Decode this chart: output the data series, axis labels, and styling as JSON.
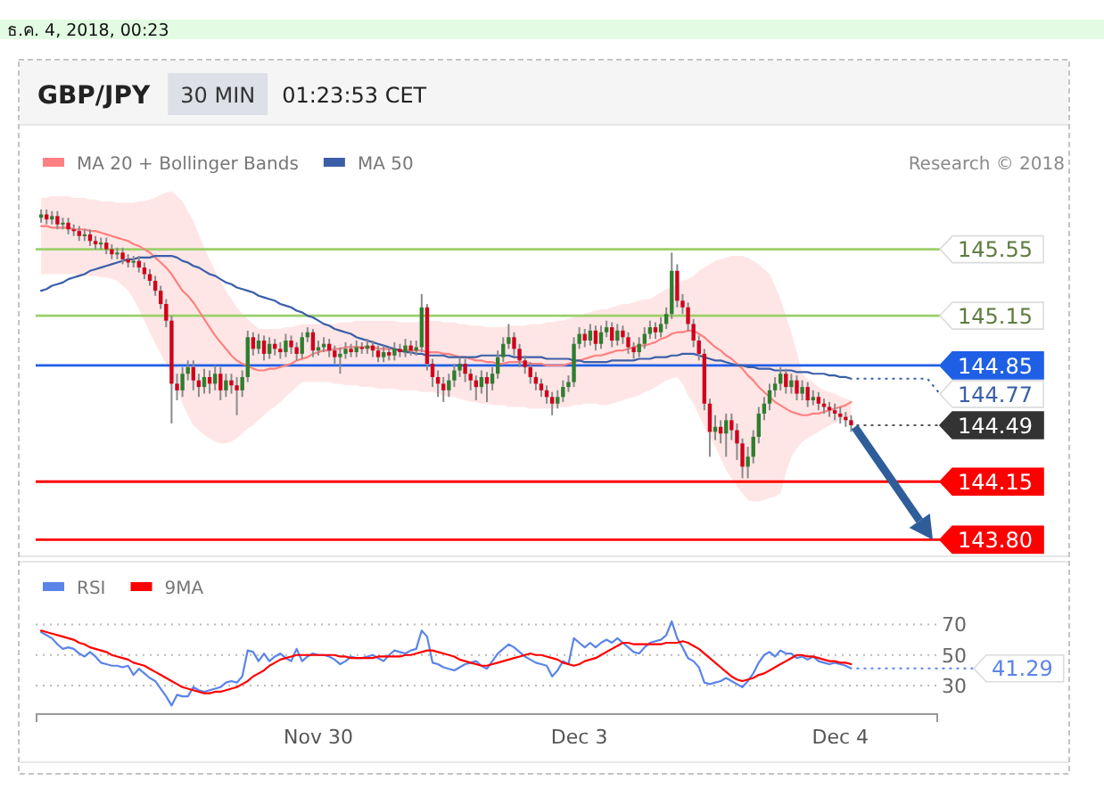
{
  "chart_data": [
    {
      "type": "candlestick",
      "title": "GBP/JPY",
      "subtitle": "30 MIN",
      "annotations": [
        "ธ.ค. 4, 2018, 00:23",
        "01:23:53 CET",
        "Research © 2018",
        "144.77",
        "144.49"
      ],
      "categories": [
        null,
        null,
        null,
        null,
        null,
        null,
        null,
        null,
        null,
        null,
        null,
        null,
        null,
        null,
        null,
        null,
        null,
        null,
        null,
        null,
        null,
        null,
        null,
        null,
        null,
        null,
        null,
        null,
        null,
        null,
        null,
        null,
        null,
        null,
        null,
        null,
        null,
        null,
        null,
        null,
        null,
        null,
        null,
        null,
        null,
        null,
        null,
        null,
        null,
        null,
        null,
        null,
        null,
        null,
        null,
        null,
        null,
        null,
        null,
        null,
        null,
        null,
        null,
        null,
        null,
        null,
        null,
        null,
        null,
        null,
        null,
        null,
        null,
        null,
        null,
        null,
        null,
        null,
        null,
        null,
        null,
        null,
        null,
        null,
        null,
        null,
        null,
        null,
        null,
        null,
        null,
        null,
        null,
        null,
        null,
        null,
        null,
        null,
        null,
        null,
        null,
        null,
        null,
        null,
        null,
        null,
        null,
        null,
        null,
        null,
        null,
        null,
        null,
        null,
        null,
        null,
        null,
        null,
        null,
        null,
        null,
        null,
        null,
        null,
        null,
        null,
        null,
        null,
        null,
        null,
        null,
        null,
        null,
        null,
        null,
        null,
        null,
        null,
        null,
        null,
        null,
        null,
        null,
        null,
        null,
        null,
        null,
        null,
        null,
        null
      ],
      "ohlc": [
        [
          145.74,
          145.79,
          145.71,
          145.76
        ],
        [
          145.76,
          145.79,
          145.7,
          145.73
        ],
        [
          145.73,
          145.78,
          145.7,
          145.75
        ],
        [
          145.75,
          145.78,
          145.67,
          145.7
        ],
        [
          145.7,
          145.74,
          145.67,
          145.71
        ],
        [
          145.71,
          145.74,
          145.64,
          145.67
        ],
        [
          145.67,
          145.7,
          145.63,
          145.66
        ],
        [
          145.66,
          145.69,
          145.6,
          145.63
        ],
        [
          145.63,
          145.67,
          145.6,
          145.64
        ],
        [
          145.64,
          145.67,
          145.57,
          145.6
        ],
        [
          145.6,
          145.63,
          145.55,
          145.58
        ],
        [
          145.58,
          145.62,
          145.55,
          145.59
        ],
        [
          145.59,
          145.62,
          145.52,
          145.55
        ],
        [
          145.55,
          145.58,
          145.49,
          145.52
        ],
        [
          145.52,
          145.56,
          145.49,
          145.53
        ],
        [
          145.53,
          145.56,
          145.46,
          145.49
        ],
        [
          145.49,
          145.52,
          145.44,
          145.47
        ],
        [
          145.47,
          145.51,
          145.44,
          145.48
        ],
        [
          145.48,
          145.51,
          145.41,
          145.44
        ],
        [
          145.44,
          145.47,
          145.37,
          145.4
        ],
        [
          145.4,
          145.43,
          145.33,
          145.36
        ],
        [
          145.36,
          145.39,
          145.27,
          145.3
        ],
        [
          145.3,
          145.33,
          145.19,
          145.22
        ],
        [
          145.22,
          145.25,
          145.08,
          145.12
        ],
        [
          145.12,
          145.15,
          144.5,
          144.74
        ],
        [
          144.74,
          144.8,
          144.64,
          144.7
        ],
        [
          144.7,
          144.84,
          144.66,
          144.8
        ],
        [
          144.8,
          144.88,
          144.76,
          144.84
        ],
        [
          144.84,
          144.88,
          144.7,
          144.76
        ],
        [
          144.76,
          144.8,
          144.66,
          144.72
        ],
        [
          144.72,
          144.83,
          144.68,
          144.78
        ],
        [
          144.78,
          144.82,
          144.68,
          144.74
        ],
        [
          144.74,
          144.85,
          144.7,
          144.8
        ],
        [
          144.8,
          144.84,
          144.64,
          144.7
        ],
        [
          144.7,
          144.8,
          144.66,
          144.76
        ],
        [
          144.76,
          144.8,
          144.68,
          144.73
        ],
        [
          144.73,
          144.78,
          144.55,
          144.7
        ],
        [
          144.7,
          144.82,
          144.66,
          144.78
        ],
        [
          144.78,
          145.06,
          144.75,
          145.02
        ],
        [
          145.02,
          145.05,
          144.91,
          144.95
        ],
        [
          144.95,
          145.04,
          144.92,
          145.0
        ],
        [
          145.0,
          145.03,
          144.88,
          144.92
        ],
        [
          144.92,
          145.02,
          144.89,
          144.98
        ],
        [
          144.98,
          145.01,
          144.91,
          144.95
        ],
        [
          144.95,
          144.99,
          144.89,
          144.93
        ],
        [
          144.93,
          145.04,
          144.9,
          145.0
        ],
        [
          145.0,
          145.03,
          144.92,
          144.96
        ],
        [
          144.96,
          144.99,
          144.88,
          144.92
        ],
        [
          144.92,
          145.05,
          144.89,
          145.02
        ],
        [
          145.02,
          145.08,
          144.99,
          145.05
        ],
        [
          145.05,
          145.07,
          144.9,
          144.94
        ],
        [
          144.94,
          145.0,
          144.91,
          144.96
        ],
        [
          144.96,
          145.02,
          144.93,
          144.98
        ],
        [
          144.98,
          145.01,
          144.9,
          144.94
        ],
        [
          144.94,
          144.97,
          144.86,
          144.9
        ],
        [
          144.9,
          144.96,
          144.8,
          144.92
        ],
        [
          144.92,
          144.99,
          144.89,
          144.95
        ],
        [
          144.95,
          144.98,
          144.9,
          144.93
        ],
        [
          144.93,
          145.0,
          144.9,
          144.96
        ],
        [
          144.96,
          144.99,
          144.92,
          144.95
        ],
        [
          144.95,
          145.01,
          144.92,
          144.97
        ],
        [
          144.97,
          145.0,
          144.9,
          144.94
        ],
        [
          144.94,
          144.97,
          144.87,
          144.9
        ],
        [
          144.9,
          144.97,
          144.87,
          144.93
        ],
        [
          144.93,
          144.96,
          144.88,
          144.91
        ],
        [
          144.91,
          144.99,
          144.88,
          144.95
        ],
        [
          144.95,
          144.98,
          144.9,
          144.93
        ],
        [
          144.93,
          145.01,
          144.9,
          144.97
        ],
        [
          144.97,
          145.0,
          144.91,
          144.94
        ],
        [
          144.94,
          145.0,
          144.91,
          144.96
        ],
        [
          144.96,
          145.28,
          144.93,
          145.2
        ],
        [
          145.2,
          145.22,
          144.82,
          144.86
        ],
        [
          144.86,
          144.89,
          144.72,
          144.78
        ],
        [
          144.78,
          144.82,
          144.66,
          144.74
        ],
        [
          144.74,
          144.78,
          144.63,
          144.7
        ],
        [
          144.7,
          144.8,
          144.66,
          144.76
        ],
        [
          144.76,
          144.86,
          144.72,
          144.82
        ],
        [
          144.82,
          144.9,
          144.78,
          144.86
        ],
        [
          144.86,
          144.89,
          144.75,
          144.8
        ],
        [
          144.8,
          144.83,
          144.7,
          144.76
        ],
        [
          144.76,
          144.79,
          144.64,
          144.72
        ],
        [
          144.72,
          144.82,
          144.68,
          144.78
        ],
        [
          144.78,
          144.81,
          144.63,
          144.74
        ],
        [
          144.74,
          144.84,
          144.7,
          144.8
        ],
        [
          144.8,
          144.94,
          144.77,
          144.9
        ],
        [
          144.9,
          145.02,
          144.87,
          144.98
        ],
        [
          144.98,
          145.1,
          144.95,
          145.02
        ],
        [
          145.02,
          145.05,
          144.91,
          144.95
        ],
        [
          144.95,
          144.98,
          144.84,
          144.88
        ],
        [
          144.88,
          144.91,
          144.8,
          144.84
        ],
        [
          144.84,
          144.87,
          144.74,
          144.78
        ],
        [
          144.78,
          144.81,
          144.7,
          144.74
        ],
        [
          144.74,
          144.77,
          144.66,
          144.7
        ],
        [
          144.7,
          144.73,
          144.62,
          144.66
        ],
        [
          144.66,
          144.69,
          144.55,
          144.62
        ],
        [
          144.62,
          144.7,
          144.59,
          144.66
        ],
        [
          144.66,
          144.76,
          144.63,
          144.72
        ],
        [
          144.72,
          144.79,
          144.69,
          144.75
        ],
        [
          144.75,
          145.02,
          144.72,
          144.98
        ],
        [
          144.98,
          145.08,
          144.95,
          145.04
        ],
        [
          145.04,
          145.07,
          144.96,
          145.0
        ],
        [
          145.0,
          145.1,
          144.97,
          145.06
        ],
        [
          145.06,
          145.09,
          144.94,
          144.98
        ],
        [
          144.98,
          145.09,
          144.95,
          145.05
        ],
        [
          145.05,
          145.12,
          145.02,
          145.08
        ],
        [
          145.08,
          145.11,
          144.96,
          145.0
        ],
        [
          145.0,
          145.1,
          144.97,
          145.06
        ],
        [
          145.06,
          145.09,
          144.98,
          145.02
        ],
        [
          145.02,
          145.05,
          144.92,
          144.96
        ],
        [
          144.96,
          144.99,
          144.89,
          144.93
        ],
        [
          144.93,
          145.02,
          144.9,
          144.98
        ],
        [
          144.98,
          145.08,
          144.95,
          145.04
        ],
        [
          145.04,
          145.12,
          145.01,
          145.08
        ],
        [
          145.08,
          145.11,
          145.01,
          145.05
        ],
        [
          145.05,
          145.14,
          145.02,
          145.1
        ],
        [
          145.1,
          145.2,
          145.07,
          145.16
        ],
        [
          145.16,
          145.53,
          145.13,
          145.42
        ],
        [
          145.42,
          145.46,
          145.2,
          145.24
        ],
        [
          145.24,
          145.28,
          145.16,
          145.2
        ],
        [
          145.2,
          145.23,
          145.06,
          145.1
        ],
        [
          145.1,
          145.13,
          144.96,
          145.0
        ],
        [
          145.0,
          145.03,
          144.88,
          144.92
        ],
        [
          144.92,
          144.95,
          144.58,
          144.62
        ],
        [
          144.62,
          144.65,
          144.3,
          144.45
        ],
        [
          144.45,
          144.55,
          144.4,
          144.48
        ],
        [
          144.48,
          144.52,
          144.38,
          144.44
        ],
        [
          144.44,
          144.56,
          144.3,
          144.52
        ],
        [
          144.52,
          144.56,
          144.4,
          144.46
        ],
        [
          144.46,
          144.5,
          144.28,
          144.38
        ],
        [
          144.38,
          144.41,
          144.17,
          144.24
        ],
        [
          144.24,
          144.36,
          144.17,
          144.3
        ],
        [
          144.3,
          144.46,
          144.26,
          144.42
        ],
        [
          144.42,
          144.6,
          144.38,
          144.56
        ],
        [
          144.56,
          144.66,
          144.52,
          144.62
        ],
        [
          144.62,
          144.74,
          144.58,
          144.7
        ],
        [
          144.7,
          144.78,
          144.66,
          144.74
        ],
        [
          144.74,
          144.84,
          144.7,
          144.8
        ],
        [
          144.8,
          144.83,
          144.68,
          144.72
        ],
        [
          144.72,
          144.8,
          144.68,
          144.76
        ],
        [
          144.76,
          144.79,
          144.64,
          144.68
        ],
        [
          144.68,
          144.76,
          144.64,
          144.72
        ],
        [
          144.72,
          144.75,
          144.6,
          144.64
        ],
        [
          144.64,
          144.7,
          144.61,
          144.66
        ],
        [
          144.66,
          144.69,
          144.58,
          144.62
        ],
        [
          144.62,
          144.65,
          144.56,
          144.6
        ],
        [
          144.6,
          144.63,
          144.54,
          144.58
        ],
        [
          144.58,
          144.62,
          144.52,
          144.56
        ],
        [
          144.56,
          144.6,
          144.5,
          144.54
        ],
        [
          144.54,
          144.57,
          144.48,
          144.52
        ],
        [
          144.52,
          144.55,
          144.45,
          144.49
        ]
      ],
      "series": [
        {
          "name": "MA 20 + Bollinger Bands",
          "type": "line",
          "color": "#ff8080",
          "values": [
            145.69,
            145.69,
            145.68,
            145.68,
            145.68,
            145.68,
            145.67,
            145.67,
            145.67,
            145.66,
            145.66,
            145.65,
            145.64,
            145.63,
            145.62,
            145.61,
            145.6,
            145.58,
            145.57,
            145.55,
            145.53,
            145.5,
            145.47,
            145.44,
            145.4,
            145.35,
            145.3,
            145.27,
            145.23,
            145.18,
            145.13,
            145.08,
            145.03,
            144.99,
            144.95,
            144.91,
            144.88,
            144.86,
            144.85,
            144.83,
            144.82,
            144.82,
            144.83,
            144.83,
            144.84,
            144.85,
            144.86,
            144.88,
            144.89,
            144.9,
            144.92,
            144.93,
            144.94,
            144.94,
            144.95,
            144.95,
            144.96,
            144.96,
            144.96,
            144.96,
            144.96,
            144.96,
            144.95,
            144.95,
            144.95,
            144.95,
            144.94,
            144.94,
            144.94,
            144.94,
            144.94,
            144.93,
            144.93,
            144.93,
            144.92,
            144.92,
            144.91,
            144.9,
            144.9,
            144.89,
            144.88,
            144.88,
            144.87,
            144.87,
            144.86,
            144.86,
            144.87,
            144.87,
            144.87,
            144.87,
            144.86,
            144.86,
            144.86,
            144.85,
            144.85,
            144.85,
            144.85,
            144.86,
            144.87,
            144.88,
            144.89,
            144.9,
            144.91,
            144.91,
            144.92,
            144.93,
            144.94,
            144.94,
            144.95,
            144.96,
            144.97,
            144.97,
            144.98,
            144.99,
            145.01,
            145.02,
            145.04,
            145.05,
            145.05,
            145.06,
            145.06,
            145.04,
            145.02,
            144.99,
            144.96,
            144.94,
            144.91,
            144.89,
            144.86,
            144.83,
            144.79,
            144.76,
            144.72,
            144.69,
            144.66,
            144.63,
            144.61,
            144.59,
            144.57,
            144.56,
            144.55,
            144.55,
            144.56,
            144.56,
            144.57,
            144.58,
            144.59,
            144.6,
            144.61,
            144.63
          ],
          "upper": [
            145.86,
            145.86,
            145.87,
            145.87,
            145.87,
            145.87,
            145.86,
            145.86,
            145.86,
            145.85,
            145.85,
            145.84,
            145.84,
            145.84,
            145.83,
            145.83,
            145.83,
            145.83,
            145.84,
            145.84,
            145.85,
            145.86,
            145.88,
            145.89,
            145.9,
            145.87,
            145.84,
            145.78,
            145.72,
            145.64,
            145.56,
            145.49,
            145.42,
            145.36,
            145.3,
            145.25,
            145.2,
            145.16,
            145.13,
            145.1,
            145.07,
            145.07,
            145.07,
            145.07,
            145.07,
            145.08,
            145.08,
            145.09,
            145.1,
            145.1,
            145.1,
            145.1,
            145.1,
            145.1,
            145.1,
            145.11,
            145.11,
            145.11,
            145.12,
            145.12,
            145.12,
            145.12,
            145.12,
            145.12,
            145.12,
            145.12,
            145.11,
            145.11,
            145.11,
            145.11,
            145.12,
            145.12,
            145.12,
            145.12,
            145.11,
            145.11,
            145.11,
            145.1,
            145.1,
            145.09,
            145.09,
            145.09,
            145.08,
            145.08,
            145.08,
            145.08,
            145.09,
            145.09,
            145.09,
            145.09,
            145.1,
            145.1,
            145.1,
            145.11,
            145.11,
            145.12,
            145.12,
            145.13,
            145.14,
            145.15,
            145.16,
            145.17,
            145.18,
            145.19,
            145.19,
            145.2,
            145.21,
            145.22,
            145.22,
            145.23,
            145.24,
            145.25,
            145.25,
            145.27,
            145.29,
            145.31,
            145.32,
            145.34,
            145.36,
            145.37,
            145.39,
            145.42,
            145.44,
            145.46,
            145.48,
            145.49,
            145.5,
            145.51,
            145.51,
            145.51,
            145.5,
            145.48,
            145.46,
            145.43,
            145.4,
            145.33,
            145.25,
            145.15,
            145.05,
            144.93,
            144.8,
            144.77,
            144.75,
            144.72,
            144.7,
            144.69,
            144.68,
            144.66,
            144.65,
            144.64
          ],
          "lower": [
            145.4,
            145.4,
            145.4,
            145.4,
            145.4,
            145.4,
            145.4,
            145.39,
            145.39,
            145.39,
            145.39,
            145.38,
            145.38,
            145.37,
            145.36,
            145.33,
            145.3,
            145.25,
            145.19,
            145.12,
            145.05,
            144.98,
            144.92,
            144.86,
            144.8,
            144.71,
            144.62,
            144.55,
            144.49,
            144.46,
            144.43,
            144.41,
            144.39,
            144.38,
            144.38,
            144.39,
            144.41,
            144.44,
            144.47,
            144.49,
            144.52,
            144.55,
            144.58,
            144.6,
            144.63,
            144.66,
            144.69,
            144.72,
            144.75,
            144.75,
            144.75,
            144.75,
            144.75,
            144.75,
            144.74,
            144.74,
            144.73,
            144.73,
            144.73,
            144.72,
            144.72,
            144.72,
            144.71,
            144.71,
            144.71,
            144.71,
            144.7,
            144.7,
            144.7,
            144.7,
            144.69,
            144.69,
            144.69,
            144.68,
            144.67,
            144.66,
            144.66,
            144.65,
            144.64,
            144.63,
            144.63,
            144.62,
            144.62,
            144.61,
            144.61,
            144.61,
            144.6,
            144.6,
            144.6,
            144.6,
            144.59,
            144.59,
            144.59,
            144.59,
            144.59,
            144.6,
            144.6,
            144.6,
            144.61,
            144.61,
            144.62,
            144.62,
            144.62,
            144.61,
            144.61,
            144.62,
            144.63,
            144.64,
            144.65,
            144.66,
            144.67,
            144.69,
            144.7,
            144.72,
            144.74,
            144.76,
            144.77,
            144.78,
            144.74,
            144.67,
            144.62,
            144.55,
            144.48,
            144.42,
            144.36,
            144.29,
            144.22,
            144.17,
            144.12,
            144.08,
            144.04,
            144.03,
            144.03,
            144.04,
            144.05,
            144.06,
            144.08,
            144.2,
            144.3,
            144.35,
            144.39,
            144.41,
            144.43,
            144.45,
            144.47,
            144.49,
            144.5,
            144.52,
            144.53,
            144.54
          ]
        },
        {
          "name": "MA 50",
          "type": "line",
          "color": "#3a5fa8",
          "values": [
            145.3,
            145.31,
            145.33,
            145.34,
            145.35,
            145.37,
            145.38,
            145.39,
            145.4,
            145.42,
            145.43,
            145.44,
            145.45,
            145.46,
            145.47,
            145.48,
            145.49,
            145.49,
            145.5,
            145.5,
            145.5,
            145.51,
            145.51,
            145.51,
            145.51,
            145.5,
            145.48,
            145.47,
            145.45,
            145.44,
            145.42,
            145.4,
            145.39,
            145.37,
            145.35,
            145.34,
            145.32,
            145.31,
            145.3,
            145.29,
            145.27,
            145.26,
            145.25,
            145.24,
            145.22,
            145.21,
            145.2,
            145.18,
            145.17,
            145.15,
            145.14,
            145.12,
            145.1,
            145.09,
            145.07,
            145.06,
            145.05,
            145.04,
            145.02,
            145.01,
            145.0,
            144.99,
            144.98,
            144.97,
            144.96,
            144.95,
            144.94,
            144.93,
            144.93,
            144.92,
            144.92,
            144.91,
            144.91,
            144.91,
            144.91,
            144.9,
            144.9,
            144.9,
            144.9,
            144.9,
            144.9,
            144.91,
            144.91,
            144.91,
            144.91,
            144.91,
            144.91,
            144.9,
            144.9,
            144.9,
            144.9,
            144.9,
            144.9,
            144.89,
            144.89,
            144.89,
            144.89,
            144.89,
            144.88,
            144.88,
            144.87,
            144.87,
            144.87,
            144.87,
            144.87,
            144.88,
            144.88,
            144.88,
            144.88,
            144.88,
            144.89,
            144.89,
            144.89,
            144.9,
            144.9,
            144.9,
            144.91,
            144.91,
            144.92,
            144.92,
            144.92,
            144.91,
            144.9,
            144.89,
            144.88,
            144.88,
            144.87,
            144.86,
            144.85,
            144.85,
            144.84,
            144.84,
            144.83,
            144.83,
            144.83,
            144.82,
            144.82,
            144.82,
            144.82,
            144.81,
            144.81,
            144.81,
            144.8,
            144.8,
            144.8,
            144.79,
            144.79,
            144.78,
            144.78,
            144.77
          ]
        }
      ],
      "ref_lines": [
        {
          "axis": "y",
          "value": 145.55,
          "label": "145.55",
          "color": "#9ccf6a"
        },
        {
          "axis": "y",
          "value": 145.15,
          "label": "145.15",
          "color": "#9ccf6a"
        },
        {
          "axis": "y",
          "value": 144.85,
          "label": "144.85",
          "color": "#1f5fe6"
        },
        {
          "axis": "y",
          "value": 144.15,
          "label": "144.15",
          "color": "#ff0000"
        },
        {
          "axis": "y",
          "value": 143.8,
          "label": "143.80",
          "color": "#ff0000"
        }
      ],
      "ylim": [
        143.7,
        146.3
      ],
      "legend": "top left"
    },
    {
      "type": "line",
      "categories": [
        null,
        null,
        null,
        null,
        null,
        null,
        null,
        null,
        null,
        null,
        null,
        null,
        null,
        null,
        null,
        null,
        null,
        null,
        null,
        null,
        null,
        null,
        null,
        null,
        null,
        null,
        null,
        null,
        null,
        null,
        null,
        null,
        null,
        null,
        null,
        null,
        null,
        null,
        null,
        null,
        null,
        null,
        null,
        null,
        null,
        null,
        null,
        null,
        null,
        null,
        null,
        "Nov 30",
        null,
        null,
        null,
        null,
        null,
        null,
        null,
        null,
        null,
        null,
        null,
        null,
        null,
        null,
        null,
        null,
        null,
        null,
        null,
        null,
        null,
        null,
        null,
        null,
        null,
        null,
        null,
        null,
        null,
        null,
        null,
        null,
        null,
        null,
        null,
        null,
        null,
        null,
        null,
        null,
        null,
        null,
        null,
        null,
        null,
        null,
        null,
        "Dec 3",
        null,
        null,
        null,
        null,
        null,
        null,
        null,
        null,
        null,
        null,
        null,
        null,
        null,
        null,
        null,
        null,
        null,
        null,
        null,
        null,
        null,
        null,
        null,
        null,
        null,
        null,
        null,
        null,
        null,
        null,
        null,
        null,
        null,
        null,
        null,
        null,
        null,
        null,
        null,
        null,
        null,
        null,
        null,
        null,
        null,
        null,
        null,
        "Dec 4",
        null,
        null
      ],
      "series": [
        {
          "name": "RSI",
          "color": "#5b84e8",
          "values": [
            65,
            63,
            61,
            57,
            54,
            55,
            54,
            51,
            49,
            52,
            49,
            45,
            44,
            43,
            43,
            42,
            43,
            37,
            41,
            38,
            35,
            33,
            28,
            23,
            17,
            24,
            23,
            23,
            29,
            27,
            26,
            27,
            28,
            29,
            32,
            33,
            32,
            36,
            53,
            52,
            46,
            51,
            46,
            49,
            51,
            48,
            46,
            54,
            46,
            49,
            51,
            50,
            50,
            49,
            47,
            44,
            46,
            49,
            48,
            48,
            49,
            50,
            48,
            46,
            50,
            53,
            52,
            51,
            53,
            54,
            66,
            62,
            45,
            44,
            42,
            41,
            40,
            42,
            44,
            45,
            46,
            43,
            41,
            46,
            51,
            54,
            57,
            55,
            52,
            49,
            47,
            45,
            44,
            43,
            36,
            40,
            46,
            44,
            61,
            58,
            55,
            58,
            55,
            58,
            60,
            58,
            61,
            58,
            55,
            52,
            51,
            55,
            58,
            59,
            60,
            63,
            72,
            61,
            55,
            48,
            46,
            42,
            32,
            31,
            32,
            33,
            35,
            33,
            31,
            29,
            33,
            38,
            45,
            50,
            52,
            49,
            53,
            51,
            51,
            48,
            49,
            47,
            49,
            46,
            45,
            44,
            45,
            44,
            43,
            41.29
          ]
        },
        {
          "name": "9MA",
          "color": "#ff0000",
          "values": [
            66,
            65,
            64,
            63,
            62,
            61,
            60,
            58,
            57,
            55,
            54,
            53,
            52,
            50,
            49,
            48,
            47,
            45,
            44,
            43,
            41,
            39,
            37,
            35,
            33,
            31,
            29,
            28,
            27,
            26,
            25,
            25,
            26,
            26,
            27,
            28,
            29,
            31,
            33,
            36,
            38,
            40,
            43,
            45,
            47,
            48,
            49,
            50,
            50,
            50,
            50,
            50,
            50,
            50,
            50,
            49,
            49,
            48,
            48,
            48,
            48,
            48,
            49,
            49,
            49,
            49,
            49,
            50,
            50,
            51,
            52,
            53,
            53,
            52,
            51,
            50,
            49,
            47,
            46,
            45,
            44,
            43,
            43,
            44,
            45,
            46,
            47,
            48,
            49,
            50,
            51,
            50,
            50,
            49,
            48,
            47,
            45,
            44,
            43,
            44,
            46,
            47,
            48,
            50,
            52,
            54,
            56,
            58,
            58,
            57,
            57,
            57,
            57,
            57,
            57,
            58,
            58,
            58,
            59,
            58,
            56,
            54,
            51,
            48,
            45,
            42,
            39,
            36,
            34,
            33,
            34,
            35,
            37,
            38,
            40,
            42,
            44,
            46,
            48,
            50,
            50,
            49,
            49,
            48,
            47,
            46,
            46,
            45,
            45,
            44
          ]
        }
      ],
      "annotations": [
        "41.29"
      ],
      "ylim": [
        12,
        111
      ],
      "yticks": [
        30,
        50,
        70
      ],
      "grid": "y",
      "legend": "top left"
    }
  ]
}
